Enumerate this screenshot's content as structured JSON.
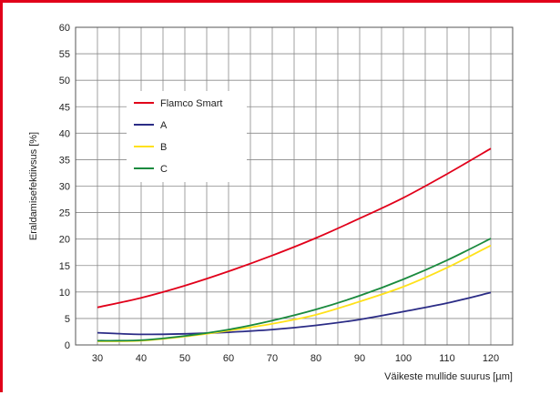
{
  "chart_data": {
    "type": "line",
    "xlabel": "Väikeste mullide suurus [µm]",
    "ylabel": "Eraldamisefektiivsus [%]",
    "xlim": [
      25,
      125
    ],
    "ylim": [
      0,
      60
    ],
    "x_ticks": [
      30,
      40,
      50,
      60,
      70,
      80,
      90,
      100,
      110,
      120
    ],
    "y_ticks": [
      0,
      5,
      10,
      15,
      20,
      25,
      30,
      35,
      40,
      45,
      50,
      55,
      60
    ],
    "grid": true,
    "legend_position": "upper-left",
    "series": [
      {
        "name": "Flamco Smart",
        "color": "#e1001a",
        "x": [
          30,
          40,
          50,
          60,
          70,
          80,
          90,
          100,
          110,
          120
        ],
        "y": [
          7.1,
          8.9,
          11.2,
          13.9,
          16.9,
          20.2,
          23.9,
          27.8,
          32.3,
          37.1
        ]
      },
      {
        "name": "A",
        "color": "#2b2c86",
        "x": [
          30,
          40,
          50,
          60,
          70,
          80,
          90,
          100,
          110,
          120
        ],
        "y": [
          2.3,
          2.0,
          2.1,
          2.4,
          2.9,
          3.7,
          4.8,
          6.3,
          7.9,
          9.9
        ]
      },
      {
        "name": "B",
        "color": "#ffe11a",
        "x": [
          30,
          40,
          50,
          60,
          70,
          80,
          90,
          100,
          110,
          120
        ],
        "y": [
          0.7,
          0.8,
          1.6,
          2.7,
          4.0,
          5.7,
          8.2,
          11.0,
          14.6,
          18.8
        ]
      },
      {
        "name": "C",
        "color": "#1a8a3e",
        "x": [
          30,
          40,
          50,
          60,
          70,
          80,
          90,
          100,
          110,
          120
        ],
        "y": [
          0.8,
          0.9,
          1.7,
          2.9,
          4.6,
          6.7,
          9.3,
          12.4,
          16.0,
          20.1
        ]
      }
    ]
  }
}
